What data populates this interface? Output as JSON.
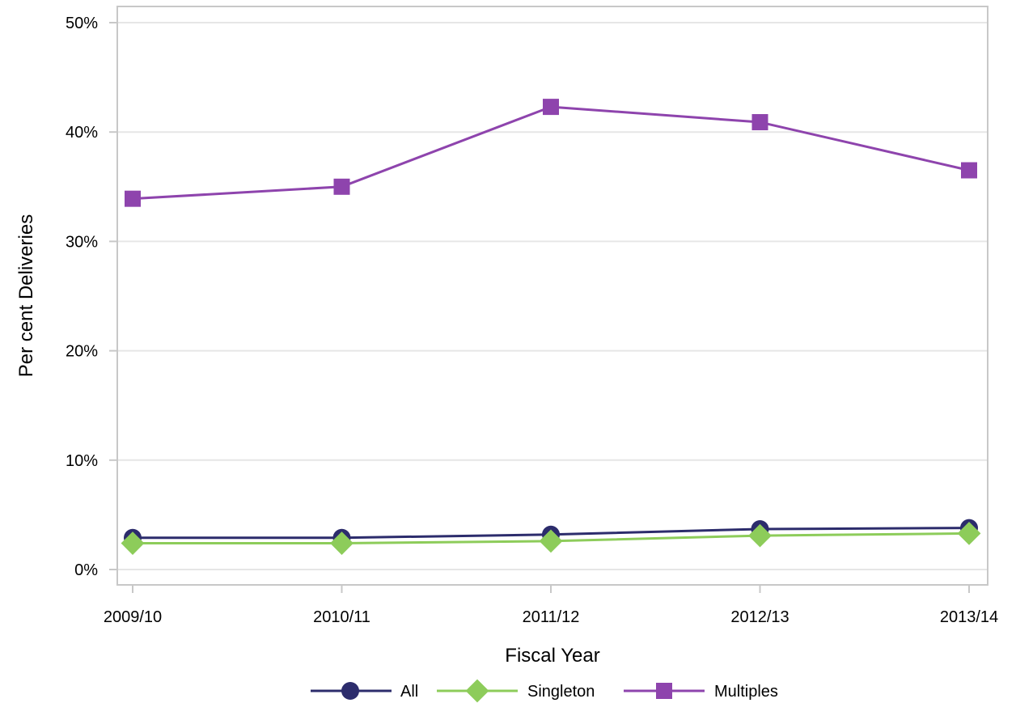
{
  "chart_data": {
    "type": "line",
    "title": "",
    "xlabel": "Fiscal Year",
    "ylabel": "Per cent Deliveries",
    "categories": [
      "2009/10",
      "2010/11",
      "2011/12",
      "2012/13",
      "2013/14"
    ],
    "ylim": [
      0,
      50
    ],
    "yticks": [
      0,
      10,
      20,
      30,
      40,
      50
    ],
    "ytick_labels": [
      "0%",
      "10%",
      "20%",
      "30%",
      "40%",
      "50%"
    ],
    "grid": "horizontal",
    "legend_position": "bottom",
    "series": [
      {
        "name": "All",
        "values": [
          2.9,
          2.9,
          3.2,
          3.7,
          3.8
        ],
        "color": "#2c2c6c",
        "marker": "circle"
      },
      {
        "name": "Singleton",
        "values": [
          2.4,
          2.4,
          2.6,
          3.1,
          3.3
        ],
        "color": "#8dcc5a",
        "marker": "diamond"
      },
      {
        "name": "Multiples",
        "values": [
          33.9,
          35.0,
          42.3,
          40.9,
          36.5
        ],
        "color": "#8e44ad",
        "marker": "square"
      }
    ]
  }
}
